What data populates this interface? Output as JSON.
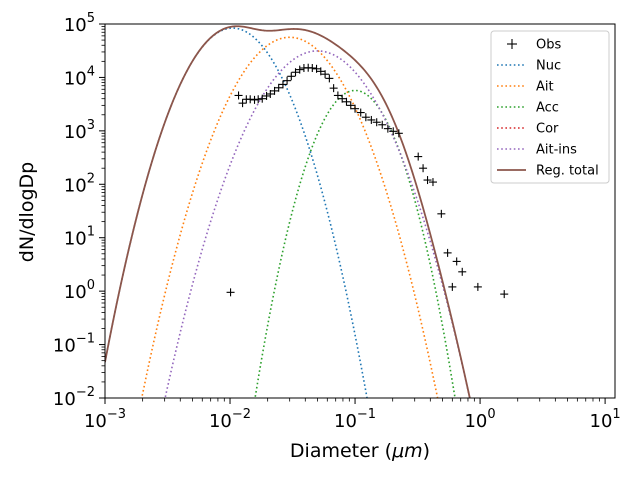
{
  "chart_data": {
    "type": "line",
    "title": "",
    "xlabel": "Diameter (",
    "xlabel_unit": "μm",
    "xlabel_close": ")",
    "ylabel": "dN/dlogDp",
    "xscale": "log",
    "yscale": "log",
    "xlim": [
      0.001,
      12
    ],
    "ylim": [
      0.01,
      100000
    ],
    "grid": false,
    "legend_placement": "top-right",
    "x_ticks": [
      {
        "value": 0.001,
        "base": "10",
        "exp": "−3"
      },
      {
        "value": 0.01,
        "base": "10",
        "exp": "−2"
      },
      {
        "value": 0.1,
        "base": "10",
        "exp": "−1"
      },
      {
        "value": 1,
        "base": "10",
        "exp": "0"
      },
      {
        "value": 10,
        "base": "10",
        "exp": "1"
      }
    ],
    "y_ticks": [
      {
        "value": 0.01,
        "base": "10",
        "exp": "−2"
      },
      {
        "value": 0.1,
        "base": "10",
        "exp": "−1"
      },
      {
        "value": 1,
        "base": "10",
        "exp": "0"
      },
      {
        "value": 10,
        "base": "10",
        "exp": "1"
      },
      {
        "value": 100,
        "base": "10",
        "exp": "2"
      },
      {
        "value": 1000,
        "base": "10",
        "exp": "3"
      },
      {
        "value": 10000,
        "base": "10",
        "exp": "4"
      },
      {
        "value": 100000,
        "base": "10",
        "exp": "5"
      }
    ],
    "series": [
      {
        "name": "Obs",
        "kind": "marker",
        "color": "#000000",
        "points": [
          [
            0.0101,
            0.95
          ],
          [
            0.0117,
            4600
          ],
          [
            0.0126,
            3300
          ],
          [
            0.0135,
            3900
          ],
          [
            0.0145,
            3900
          ],
          [
            0.0157,
            3800
          ],
          [
            0.0168,
            3900
          ],
          [
            0.0181,
            4000
          ],
          [
            0.0196,
            4500
          ],
          [
            0.021,
            4900
          ],
          [
            0.0227,
            5600
          ],
          [
            0.0245,
            6400
          ],
          [
            0.0265,
            7400
          ],
          [
            0.0286,
            8700
          ],
          [
            0.0309,
            10500
          ],
          [
            0.0334,
            12500
          ],
          [
            0.0361,
            14000
          ],
          [
            0.039,
            15000
          ],
          [
            0.0422,
            15200
          ],
          [
            0.0455,
            15000
          ],
          [
            0.0492,
            14500
          ],
          [
            0.0532,
            13000
          ],
          [
            0.0576,
            11500
          ],
          [
            0.0623,
            9600
          ],
          [
            0.0674,
            6300
          ],
          [
            0.0729,
            4600
          ],
          [
            0.0789,
            4000
          ],
          [
            0.0854,
            3500
          ],
          [
            0.0924,
            3000
          ],
          [
            0.1,
            2600
          ],
          [
            0.111,
            2200
          ],
          [
            0.122,
            1800
          ],
          [
            0.135,
            1600
          ],
          [
            0.149,
            1450
          ],
          [
            0.165,
            1300
          ],
          [
            0.183,
            1100
          ],
          [
            0.202,
            980
          ],
          [
            0.224,
            900
          ],
          [
            0.32,
            330
          ],
          [
            0.35,
            200
          ],
          [
            0.38,
            120
          ],
          [
            0.42,
            110
          ],
          [
            0.49,
            28
          ],
          [
            0.55,
            5.2
          ],
          [
            0.6,
            1.2
          ],
          [
            0.65,
            3.6
          ],
          [
            0.72,
            2.3
          ],
          [
            0.96,
            1.2
          ],
          [
            1.56,
            0.88
          ]
        ]
      },
      {
        "name": "Nuc",
        "kind": "dotted",
        "color": "#1f77b4",
        "mode": {
          "N": 40000,
          "Dg": 0.0105,
          "sigma": 1.55
        }
      },
      {
        "name": "Ait",
        "kind": "dotted",
        "color": "#ff7f0e",
        "mode": {
          "N": 30000,
          "Dg": 0.03,
          "sigma": 1.63
        }
      },
      {
        "name": "Acc",
        "kind": "dotted",
        "color": "#2ca02c",
        "mode": {
          "N": 2220,
          "Dg": 0.1,
          "sigma": 1.43
        }
      },
      {
        "name": "Cor",
        "kind": "dotted",
        "color": "#d62728",
        "mode": {
          "N": 0,
          "Dg": 1.0,
          "sigma": 1.8
        }
      },
      {
        "name": "Ait-ins",
        "kind": "dotted",
        "color": "#9467bd",
        "mode": {
          "N": 17500,
          "Dg": 0.05,
          "sigma": 1.67
        }
      },
      {
        "name": "Reg. total",
        "kind": "solid",
        "color": "#8c564b",
        "sum_of": [
          "Nuc",
          "Ait",
          "Acc",
          "Cor",
          "Ait-ins"
        ]
      }
    ]
  }
}
